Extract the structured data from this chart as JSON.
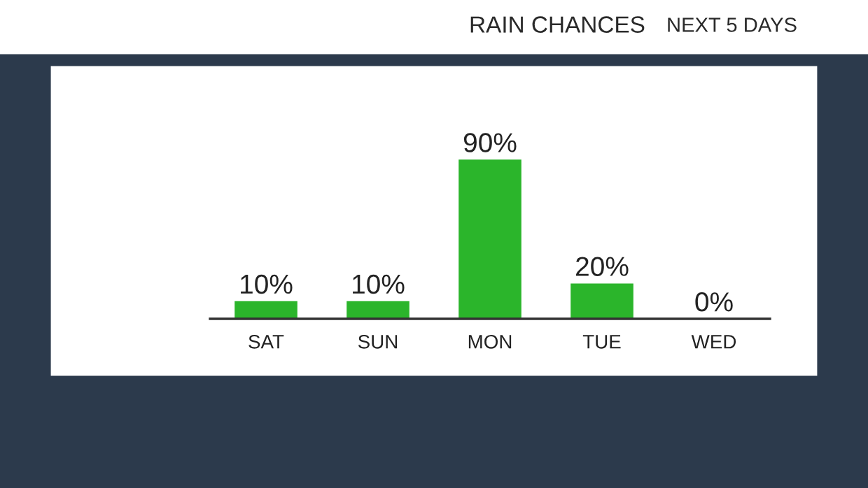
{
  "chart_data": {
    "type": "bar",
    "title": "RAIN CHANCES",
    "subtitle": "NEXT 5 DAYS",
    "categories": [
      "SAT",
      "SUN",
      "MON",
      "TUE",
      "WED"
    ],
    "values": [
      10,
      10,
      90,
      20,
      0
    ],
    "value_labels": [
      "10%",
      "10%",
      "90%",
      "20%",
      "0%"
    ],
    "color": "#2bb52b"
  }
}
